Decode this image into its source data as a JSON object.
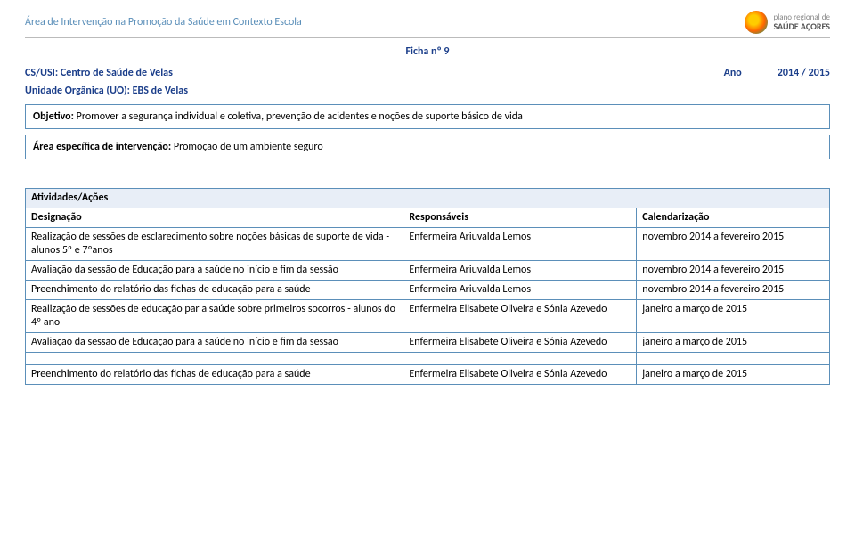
{
  "header": {
    "area": "Área de Intervenção na Promoção da Saúde em Contexto Escola",
    "logo_line1": "plano regional de",
    "logo_line2": "SAÚDE AÇORES"
  },
  "ficha": "Ficha nº 9",
  "meta": {
    "csusi_label": "CS/USI:",
    "csusi_value": "Centro de Saúde de Velas",
    "ano_label": "Ano",
    "ano_value": "2014 / 2015",
    "uo_label": "Unidade Orgânica (UO):",
    "uo_value": "EBS de Velas"
  },
  "box1": {
    "label": "Objetivo:",
    "text": " Promover a segurança individual e coletiva, prevenção de acidentes e noções de suporte básico de vida"
  },
  "box2": {
    "label": "Área específica de intervenção:",
    "text": " Promoção de um ambiente seguro"
  },
  "table": {
    "band": "Atividades/Ações",
    "cols": {
      "des": "Designação",
      "resp": "Responsáveis",
      "cal": "Calendarização"
    },
    "rows": [
      {
        "des": "Realização de sessões de esclarecimento sobre noções básicas de suporte de vida - alunos 5º e 7ºanos",
        "resp": "Enfermeira Ariuvalda Lemos",
        "cal": "novembro 2014 a fevereiro 2015"
      },
      {
        "des": "Avaliação da sessão de Educação para a saúde no início e fim da sessão",
        "resp": "Enfermeira Ariuvalda Lemos",
        "cal": "novembro 2014 a fevereiro 2015"
      },
      {
        "des": "Preenchimento do relatório das fichas de educação para a saúde",
        "resp": "Enfermeira Ariuvalda Lemos",
        "cal": "novembro 2014 a fevereiro 2015"
      },
      {
        "des": "Realização de sessões de educação par a saúde sobre primeiros socorros - alunos do 4º ano",
        "resp": "Enfermeira Elisabete Oliveira e Sónia Azevedo",
        "cal": "janeiro a março de 2015"
      },
      {
        "des": "Avaliação da sessão de Educação para a saúde no início e fim da sessão",
        "resp": "Enfermeira Elisabete Oliveira e Sónia Azevedo",
        "cal": "janeiro a março de 2015"
      }
    ],
    "spaced_row": {
      "des": "Preenchimento do relatório das fichas de educação para a saúde",
      "resp": "Enfermeira Elisabete Oliveira e Sónia Azevedo",
      "cal": "janeiro a março de 2015"
    }
  }
}
